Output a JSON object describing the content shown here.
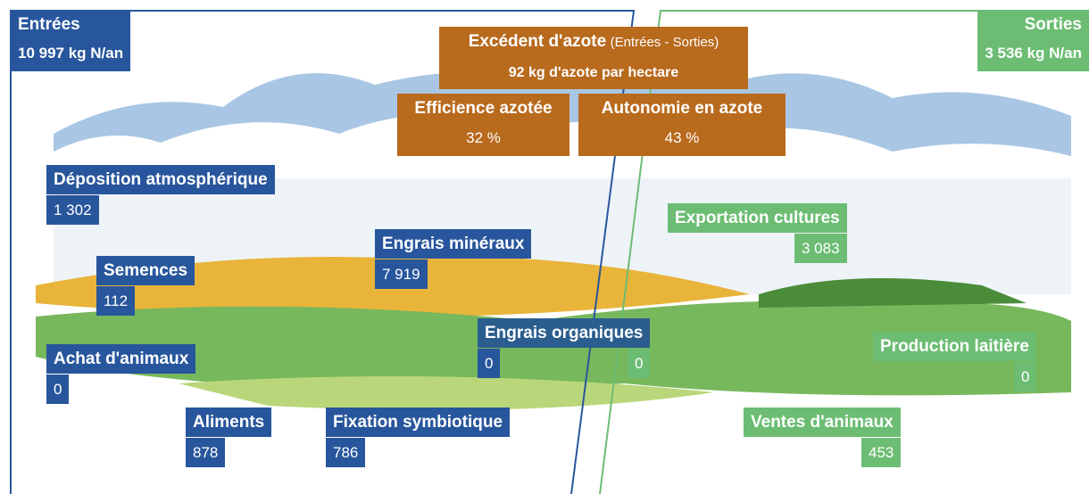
{
  "inputs": {
    "title": "Entrées",
    "total": "10 997 kg N/an",
    "items": [
      {
        "label": "Déposition atmosphérique",
        "value": "1 302"
      },
      {
        "label": "Semences",
        "value": "112"
      },
      {
        "label": "Engrais minéraux",
        "value": "7 919"
      },
      {
        "label": "Achat d'animaux",
        "value": "0"
      },
      {
        "label": "Aliments",
        "value": "878"
      },
      {
        "label": "Fixation symbiotique",
        "value": "786"
      }
    ]
  },
  "organic": {
    "label": "Engrais organiques",
    "input_value": "0",
    "output_value": "0"
  },
  "outputs": {
    "title": "Sorties",
    "total": "3 536 kg N/an",
    "items": [
      {
        "label": "Exportation cultures",
        "value": "3 083"
      },
      {
        "label": "Production laitière",
        "value": "0"
      },
      {
        "label": "Ventes d'animaux",
        "value": "453"
      }
    ]
  },
  "indicators": {
    "excess": {
      "title": "Excédent d'azote",
      "note": "(Entrées - Sorties)",
      "value": "92 kg d'azote par hectare"
    },
    "efficiency": {
      "title": "Efficience azotée",
      "value": "32 %"
    },
    "autonomy": {
      "title": "Autonomie en azote",
      "value": "43 %"
    }
  }
}
